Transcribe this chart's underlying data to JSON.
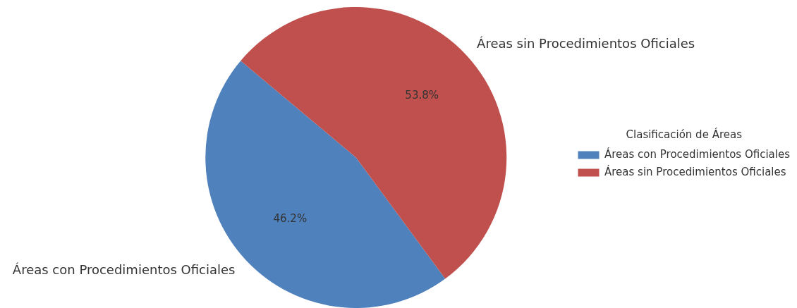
{
  "chart_data": {
    "type": "pie",
    "categories": [
      "Áreas con Procedimientos Oficiales",
      "Áreas sin Procedimientos Oficiales"
    ],
    "values": [
      46.2,
      53.8
    ],
    "colors": [
      "#4f81bd",
      "#c0504d"
    ],
    "legend_title": "Clasificación de Áreas",
    "legend": "right",
    "value_labels": [
      "46.2%",
      "53.8%"
    ]
  }
}
